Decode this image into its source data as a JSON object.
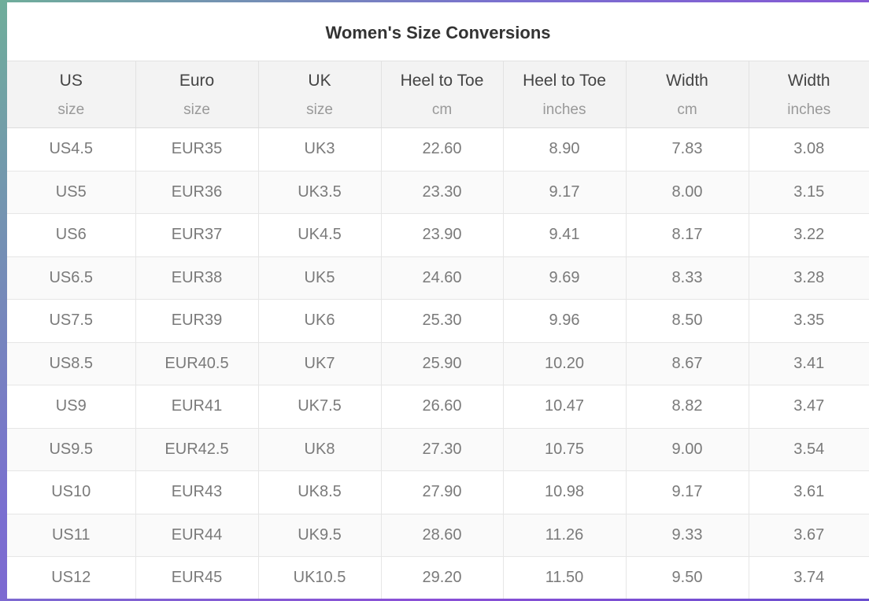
{
  "title": "Women's Size Conversions",
  "columns": [
    {
      "label": "US",
      "unit": "size"
    },
    {
      "label": "Euro",
      "unit": "size"
    },
    {
      "label": "UK",
      "unit": "size"
    },
    {
      "label": "Heel to Toe",
      "unit": "cm"
    },
    {
      "label": "Heel to Toe",
      "unit": "inches"
    },
    {
      "label": "Width",
      "unit": "cm"
    },
    {
      "label": "Width",
      "unit": "inches"
    }
  ],
  "rows": [
    [
      "US4.5",
      "EUR35",
      "UK3",
      "22.60",
      "8.90",
      "7.83",
      "3.08"
    ],
    [
      "US5",
      "EUR36",
      "UK3.5",
      "23.30",
      "9.17",
      "8.00",
      "3.15"
    ],
    [
      "US6",
      "EUR37",
      "UK4.5",
      "23.90",
      "9.41",
      "8.17",
      "3.22"
    ],
    [
      "US6.5",
      "EUR38",
      "UK5",
      "24.60",
      "9.69",
      "8.33",
      "3.28"
    ],
    [
      "US7.5",
      "EUR39",
      "UK6",
      "25.30",
      "9.96",
      "8.50",
      "3.35"
    ],
    [
      "US8.5",
      "EUR40.5",
      "UK7",
      "25.90",
      "10.20",
      "8.67",
      "3.41"
    ],
    [
      "US9",
      "EUR41",
      "UK7.5",
      "26.60",
      "10.47",
      "8.82",
      "3.47"
    ],
    [
      "US9.5",
      "EUR42.5",
      "UK8",
      "27.30",
      "10.75",
      "9.00",
      "3.54"
    ],
    [
      "US10",
      "EUR43",
      "UK8.5",
      "27.90",
      "10.98",
      "9.17",
      "3.61"
    ],
    [
      "US11",
      "EUR44",
      "UK9.5",
      "28.60",
      "11.26",
      "9.33",
      "3.67"
    ],
    [
      "US12",
      "EUR45",
      "UK10.5",
      "29.20",
      "11.50",
      "9.50",
      "3.74"
    ]
  ]
}
